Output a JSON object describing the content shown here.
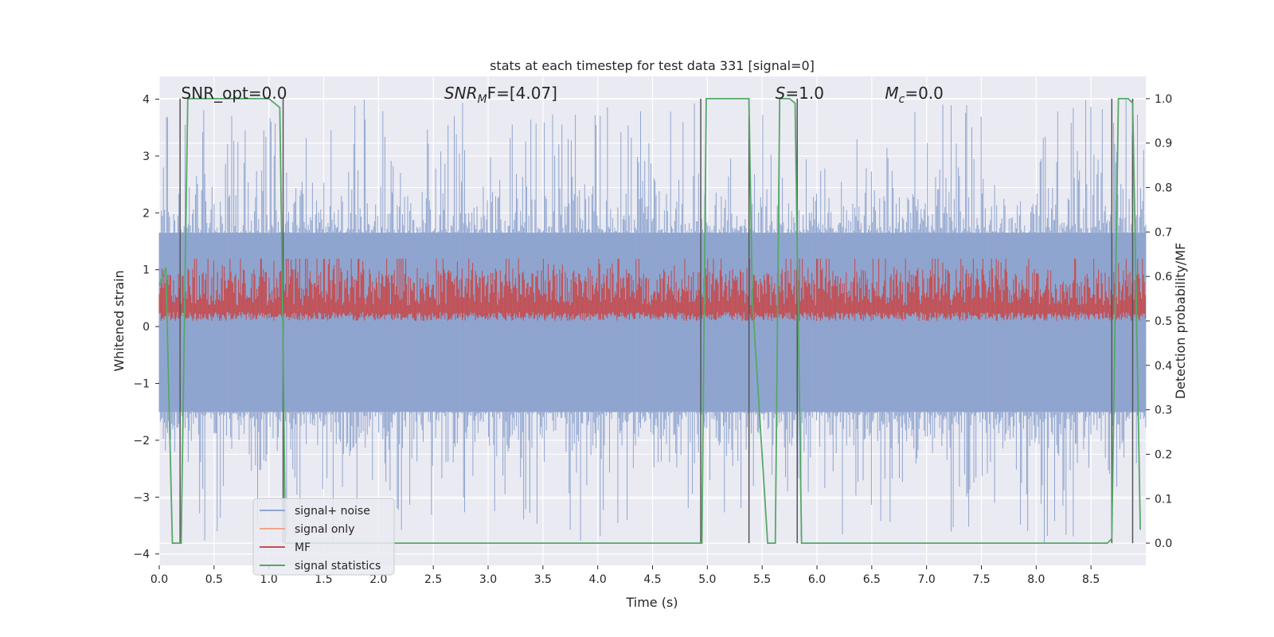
{
  "chart_data": {
    "type": "line",
    "title": "stats at each timestep for test data 331 [signal=0]",
    "xlabel": "Time (s)",
    "ylabel_left": "Whitened strain",
    "ylabel_right": "Detection probability/MF",
    "xlim": [
      0.0,
      9.0
    ],
    "ylim_left": [
      -4.2,
      4.4
    ],
    "ylim_right": [
      -0.05,
      1.05
    ],
    "grid": true,
    "legend_location": "lower-left",
    "xticks": [
      "0.0",
      "0.5",
      "1.0",
      "1.5",
      "2.0",
      "2.5",
      "3.0",
      "3.5",
      "4.0",
      "4.5",
      "5.0",
      "5.5",
      "6.0",
      "6.5",
      "7.0",
      "7.5",
      "8.0",
      "8.5"
    ],
    "xtick_values": [
      0.0,
      0.5,
      1.0,
      1.5,
      2.0,
      2.5,
      3.0,
      3.5,
      4.0,
      4.5,
      5.0,
      5.5,
      6.0,
      6.5,
      7.0,
      7.5,
      8.0,
      8.5
    ],
    "yticks_left": [
      "−4",
      "−3",
      "−2",
      "−1",
      "0",
      "1",
      "2",
      "3",
      "4"
    ],
    "ytick_values_left": [
      -4,
      -3,
      -2,
      -1,
      0,
      1,
      2,
      3,
      4
    ],
    "yticks_right": [
      "0.0",
      "0.1",
      "0.2",
      "0.3",
      "0.4",
      "0.5",
      "0.6",
      "0.7",
      "0.8",
      "0.9",
      "1.0"
    ],
    "ytick_values_right": [
      0.0,
      0.1,
      0.2,
      0.3,
      0.4,
      0.5,
      0.6,
      0.7,
      0.8,
      0.9,
      1.0
    ],
    "annotations": [
      {
        "prefix": "SNR_opt",
        "sub": "",
        "suffix": "=0.0",
        "italic": false,
        "x": 0.2
      },
      {
        "prefix": "SNR",
        "sub": "M",
        "suffix": "F=[4.07]",
        "italic": true,
        "x": 2.6
      },
      {
        "prefix": "S",
        "sub": "",
        "suffix": "=1.0",
        "italic": true,
        "x": 5.62
      },
      {
        "prefix": "M",
        "sub": "c",
        "suffix": "=0.0",
        "italic": true,
        "x": 6.62
      }
    ],
    "series": [
      {
        "name": "signal+ noise",
        "color": "#8fa5cf",
        "axis": "left",
        "style": "noise",
        "range": [
          -1.5,
          1.65
        ],
        "spikes_max": 4.0,
        "spikes_min": -3.8
      },
      {
        "name": "signal only",
        "color": "#f0a687",
        "axis": "left",
        "style": "flat",
        "value": 0.0
      },
      {
        "name": "MF",
        "color": "#c44e52",
        "axis": "right",
        "style": "band",
        "range": [
          0.5,
          0.62
        ],
        "spikes_max": 0.64
      },
      {
        "name": "signal statistics",
        "color": "#55a868",
        "axis": "right",
        "style": "line",
        "x": [
          0.0,
          0.06,
          0.12,
          0.2,
          0.26,
          0.3,
          1.0,
          1.1,
          1.13,
          1.15,
          1.2,
          1.3,
          4.95,
          4.99,
          5.02,
          5.38,
          5.41,
          5.55,
          5.62,
          5.66,
          5.75,
          5.8,
          5.83,
          5.86,
          6.2,
          6.3,
          6.4,
          8.65,
          8.69,
          8.75,
          8.84,
          8.88,
          8.92,
          8.95
        ],
        "y": [
          0.58,
          0.62,
          0.0,
          0.0,
          1.0,
          1.0,
          1.0,
          0.98,
          0.45,
          0.0,
          0.0,
          0.0,
          0.0,
          1.0,
          1.0,
          1.0,
          0.55,
          0.0,
          0.0,
          1.0,
          1.0,
          0.99,
          0.5,
          0.0,
          0.0,
          0.0,
          0.0,
          0.0,
          0.01,
          1.0,
          1.0,
          0.99,
          0.45,
          0.03
        ]
      }
    ],
    "vertical_markers": [
      0.19,
      1.13,
      4.94,
      5.38,
      5.82,
      8.69,
      8.88
    ]
  }
}
